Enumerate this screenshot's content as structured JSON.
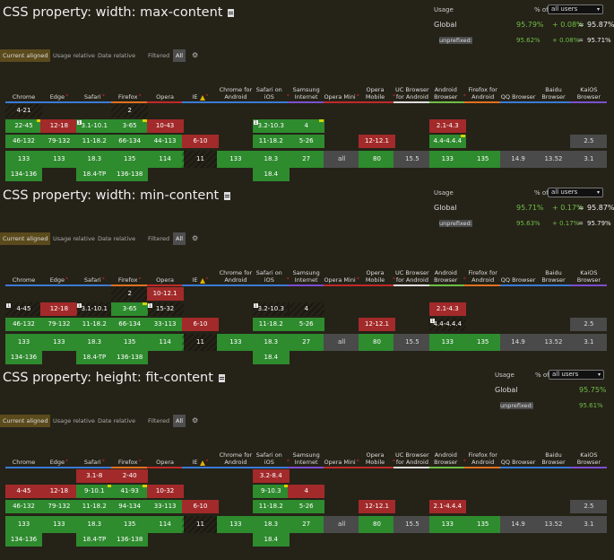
{
  "ui": {
    "usage_label": "Usage",
    "pct_of": "% of",
    "all_users": "all users",
    "global": "Global",
    "unprefixed": "unprefixed:",
    "tabs": {
      "current": "Current aligned",
      "usage_rel": "Usage relative",
      "date_rel": "Date relative",
      "filtered": "Filtered",
      "all": "All"
    }
  },
  "browsers": [
    {
      "name": "Chrome",
      "line": "#3a7bd5"
    },
    {
      "name": "Edge",
      "line": "#3a7bd5",
      "star": true
    },
    {
      "name": "Safari",
      "line": "#3a7bd5",
      "star": true
    },
    {
      "name": "Firefox",
      "line": "#e07020",
      "star": true
    },
    {
      "name": "Opera",
      "line": "#c02a2a"
    },
    {
      "name": "IE",
      "line": "#3a7bd5",
      "warn": true,
      "star": true
    },
    {
      "name": "Chrome for Android",
      "line": "#3a7bd5"
    },
    {
      "name": "Safari on iOS",
      "line": "#3a7bd5",
      "star": true
    },
    {
      "name": "Samsung Internet",
      "line": "#7b4fd0"
    },
    {
      "name": "Opera Mini",
      "line": "#c02a2a",
      "star": true
    },
    {
      "name": "Opera Mobile",
      "line": "#c02a2a",
      "star": true
    },
    {
      "name": "UC Browser for Android",
      "line": "#dddddd"
    },
    {
      "name": "Android Browser",
      "line": "#6fbf45",
      "star": true
    },
    {
      "name": "Firefox for Android",
      "line": "#e07020"
    },
    {
      "name": "QQ Browser",
      "line": "#3a7bd5"
    },
    {
      "name": "Baidu Browser",
      "line": "#3a7bd5"
    },
    {
      "name": "KaiOS Browser",
      "line": "#7b4fd0"
    }
  ],
  "features": [
    {
      "title": "CSS property: width: max-content",
      "global": {
        "a": "95.79%",
        "b": "+ 0.08%",
        "eq": "=",
        "t": "95.87%"
      },
      "unprefixed": {
        "a": "95.62%",
        "b": "+ 0.08%",
        "eq": "=",
        "t": "95.71%"
      },
      "rows": [
        [
          {
            "v": "4-21",
            "c": "n",
            "pf": 1
          },
          null,
          null,
          {
            "v": "2",
            "c": "n",
            "pf": 1
          },
          null,
          null,
          null,
          null,
          null,
          null,
          null,
          null,
          null,
          null,
          null,
          null,
          null
        ],
        [
          {
            "v": "22-45",
            "c": "y",
            "m2": 1
          },
          {
            "v": "12-18",
            "c": "n"
          },
          {
            "v": "3.1-10.1",
            "c": "y",
            "m": "1"
          },
          {
            "v": "3-65",
            "c": "y",
            "m2": 1
          },
          {
            "v": "10-43",
            "c": "n"
          },
          null,
          null,
          {
            "v": "3.2-10.3",
            "c": "y",
            "m": "1"
          },
          {
            "v": "4",
            "c": "y",
            "m2": 1
          },
          null,
          null,
          null,
          {
            "v": "2.1-4.3",
            "c": "n"
          },
          null,
          null,
          null,
          null
        ],
        [
          {
            "v": "46-132",
            "c": "y"
          },
          {
            "v": "79-132",
            "c": "y"
          },
          {
            "v": "11-18.2",
            "c": "y"
          },
          {
            "v": "66-134",
            "c": "y"
          },
          {
            "v": "44-113",
            "c": "y"
          },
          {
            "v": "6-10",
            "c": "n"
          },
          null,
          {
            "v": "11-18.2",
            "c": "y"
          },
          {
            "v": "5-26",
            "c": "y"
          },
          null,
          {
            "v": "12-12.1",
            "c": "n"
          },
          null,
          {
            "v": "4.4-4.4.4",
            "c": "y",
            "m2": 1
          },
          null,
          null,
          null,
          {
            "v": "2.5",
            "c": "u"
          }
        ],
        [
          {
            "v": "133",
            "c": "y"
          },
          {
            "v": "133",
            "c": "y"
          },
          {
            "v": "18.3",
            "c": "y"
          },
          {
            "v": "135",
            "c": "y"
          },
          {
            "v": "114",
            "c": "y"
          },
          {
            "v": "11",
            "c": "n",
            "pf": 1
          },
          {
            "v": "133",
            "c": "y"
          },
          {
            "v": "18.3",
            "c": "y"
          },
          {
            "v": "27",
            "c": "y"
          },
          {
            "v": "all",
            "c": "u"
          },
          {
            "v": "80",
            "c": "y"
          },
          {
            "v": "15.5",
            "c": "u"
          },
          {
            "v": "133",
            "c": "y"
          },
          {
            "v": "135",
            "c": "y"
          },
          {
            "v": "14.9",
            "c": "u"
          },
          {
            "v": "13.52",
            "c": "u"
          },
          {
            "v": "3.1",
            "c": "u"
          }
        ],
        [
          {
            "v": "134-136",
            "c": "y"
          },
          null,
          {
            "v": "18.4-TP",
            "c": "y"
          },
          {
            "v": "136-138",
            "c": "y"
          },
          null,
          null,
          null,
          {
            "v": "18.4",
            "c": "y"
          },
          null,
          null,
          null,
          null,
          null,
          null,
          null,
          null,
          null
        ]
      ]
    },
    {
      "title": "CSS property: width: min-content",
      "global": {
        "a": "95.71%",
        "b": "+ 0.17%",
        "eq": "=",
        "t": "95.87%"
      },
      "unprefixed": {
        "a": "95.63%",
        "b": "+ 0.17%",
        "eq": "=",
        "t": "95.79%"
      },
      "rows": [
        [
          null,
          null,
          null,
          {
            "v": "2",
            "c": "n",
            "pf": 1
          },
          {
            "v": "10-12.1",
            "c": "n"
          },
          null,
          null,
          null,
          null,
          null,
          null,
          null,
          null,
          null,
          null,
          null,
          null
        ],
        [
          {
            "v": "4-45",
            "c": "p",
            "m": "1",
            "pf": 1
          },
          {
            "v": "12-18",
            "c": "n"
          },
          {
            "v": "3.1-10.1",
            "c": "p",
            "m": "1",
            "pf": 1
          },
          {
            "v": "3-65",
            "c": "y",
            "m2": 1
          },
          {
            "v": "15-32",
            "c": "p",
            "m": "1",
            "pf": 1
          },
          null,
          null,
          {
            "v": "3.2-10.3",
            "c": "p",
            "m": "1",
            "pf": 1
          },
          {
            "v": "4",
            "c": "p",
            "pf": 1
          },
          null,
          null,
          null,
          {
            "v": "2.1-4.3",
            "c": "n"
          },
          null,
          null,
          null,
          null
        ],
        [
          {
            "v": "46-132",
            "c": "y"
          },
          {
            "v": "79-132",
            "c": "y"
          },
          {
            "v": "11-18.2",
            "c": "y"
          },
          {
            "v": "66-134",
            "c": "y"
          },
          {
            "v": "33-113",
            "c": "y"
          },
          {
            "v": "6-10",
            "c": "n"
          },
          null,
          {
            "v": "11-18.2",
            "c": "y"
          },
          {
            "v": "5-26",
            "c": "y"
          },
          null,
          {
            "v": "12-12.1",
            "c": "n"
          },
          null,
          {
            "v": "4.4-4.4.4",
            "c": "p",
            "m": "1",
            "pf": 1
          },
          null,
          null,
          null,
          {
            "v": "2.5",
            "c": "u"
          }
        ],
        [
          {
            "v": "133",
            "c": "y"
          },
          {
            "v": "133",
            "c": "y"
          },
          {
            "v": "18.3",
            "c": "y"
          },
          {
            "v": "135",
            "c": "y"
          },
          {
            "v": "114",
            "c": "y"
          },
          {
            "v": "11",
            "c": "n",
            "pf": 1
          },
          {
            "v": "133",
            "c": "y"
          },
          {
            "v": "18.3",
            "c": "y"
          },
          {
            "v": "27",
            "c": "y"
          },
          {
            "v": "all",
            "c": "u"
          },
          {
            "v": "80",
            "c": "y"
          },
          {
            "v": "15.5",
            "c": "u"
          },
          {
            "v": "133",
            "c": "y"
          },
          {
            "v": "135",
            "c": "y"
          },
          {
            "v": "14.9",
            "c": "u"
          },
          {
            "v": "13.52",
            "c": "u"
          },
          {
            "v": "3.1",
            "c": "u"
          }
        ],
        [
          {
            "v": "134-136",
            "c": "y"
          },
          null,
          {
            "v": "18.4-TP",
            "c": "y"
          },
          {
            "v": "136-138",
            "c": "y"
          },
          null,
          null,
          null,
          {
            "v": "18.4",
            "c": "y"
          },
          null,
          null,
          null,
          null,
          null,
          null,
          null,
          null,
          null
        ]
      ]
    },
    {
      "title": "CSS property: height: fit-content",
      "global": {
        "a": "95.75%"
      },
      "unprefixed": {
        "a": "95.61%"
      },
      "rows": [
        [
          null,
          null,
          {
            "v": "3.1-8",
            "c": "n"
          },
          {
            "v": "2-40",
            "c": "n"
          },
          null,
          null,
          null,
          {
            "v": "3.2-8.4",
            "c": "n"
          },
          null,
          null,
          null,
          null,
          null,
          null,
          null,
          null,
          null
        ],
        [
          {
            "v": "4-45",
            "c": "n"
          },
          {
            "v": "12-18",
            "c": "n"
          },
          {
            "v": "9-10.1",
            "c": "y",
            "m2": 1
          },
          {
            "v": "41-93",
            "c": "y",
            "m2": 1
          },
          {
            "v": "10-32",
            "c": "n"
          },
          null,
          null,
          {
            "v": "9-10.3",
            "c": "y",
            "m2": 1
          },
          {
            "v": "4",
            "c": "n"
          },
          null,
          null,
          null,
          null,
          null,
          null,
          null,
          null
        ],
        [
          {
            "v": "46-132",
            "c": "y"
          },
          {
            "v": "79-132",
            "c": "y"
          },
          {
            "v": "11-18.2",
            "c": "y"
          },
          {
            "v": "94-134",
            "c": "y"
          },
          {
            "v": "33-113",
            "c": "y"
          },
          {
            "v": "6-10",
            "c": "n"
          },
          null,
          {
            "v": "11-18.2",
            "c": "y"
          },
          {
            "v": "5-26",
            "c": "y"
          },
          null,
          {
            "v": "12-12.1",
            "c": "n"
          },
          null,
          {
            "v": "2.1-4.4.4",
            "c": "n"
          },
          null,
          null,
          null,
          {
            "v": "2.5",
            "c": "u"
          }
        ],
        [
          {
            "v": "133",
            "c": "y"
          },
          {
            "v": "133",
            "c": "y"
          },
          {
            "v": "18.3",
            "c": "y"
          },
          {
            "v": "135",
            "c": "y"
          },
          {
            "v": "114",
            "c": "y"
          },
          {
            "v": "11",
            "c": "n",
            "pf": 1
          },
          {
            "v": "133",
            "c": "y"
          },
          {
            "v": "18.3",
            "c": "y"
          },
          {
            "v": "27",
            "c": "y"
          },
          {
            "v": "all",
            "c": "u"
          },
          {
            "v": "80",
            "c": "y"
          },
          {
            "v": "15.5",
            "c": "u"
          },
          {
            "v": "133",
            "c": "y"
          },
          {
            "v": "135",
            "c": "y"
          },
          {
            "v": "14.9",
            "c": "u"
          },
          {
            "v": "13.52",
            "c": "u"
          },
          {
            "v": "3.1",
            "c": "u"
          }
        ],
        [
          {
            "v": "134-136",
            "c": "y"
          },
          null,
          {
            "v": "18.4-TP",
            "c": "y"
          },
          {
            "v": "136-138",
            "c": "y"
          },
          null,
          null,
          null,
          {
            "v": "18.4",
            "c": "y"
          },
          null,
          null,
          null,
          null,
          null,
          null,
          null,
          null,
          null
        ]
      ]
    }
  ]
}
